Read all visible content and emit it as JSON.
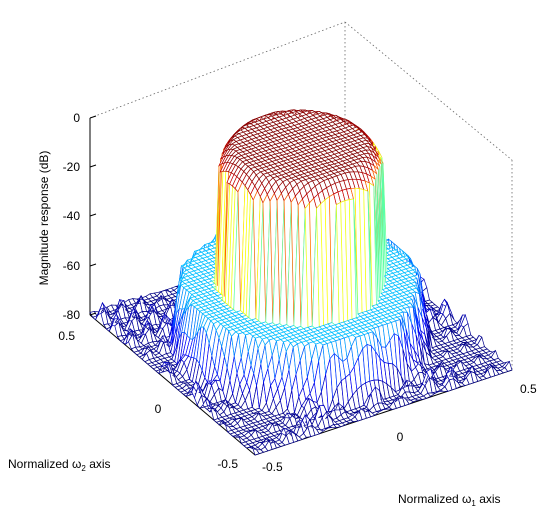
{
  "chart_data": {
    "type": "surface",
    "title": "",
    "zlabel": "Magnitude response (dB)",
    "zlim": [
      -80,
      0
    ],
    "z_ticks": [
      "0",
      "-20",
      "-40",
      "-60",
      "-80"
    ],
    "x_axis": {
      "label_prefix": "Normalized ",
      "symbol": "ω",
      "subscript": "1",
      "label_suffix": " axis",
      "ticks": [
        "-0.5",
        "0",
        "0.5"
      ],
      "range": [
        -0.5,
        0.5
      ]
    },
    "y_axis": {
      "label_prefix": "Normalized ",
      "symbol": "ω",
      "subscript": "2",
      "label_suffix": " axis",
      "ticks": [
        "-0.5",
        "0",
        "0.5"
      ],
      "range": [
        -0.5,
        0.5
      ]
    },
    "description_values": {
      "passband_level_db": 0,
      "stopband_floor_db": -80
    },
    "colormap": "jet",
    "grid": "dotted box"
  }
}
